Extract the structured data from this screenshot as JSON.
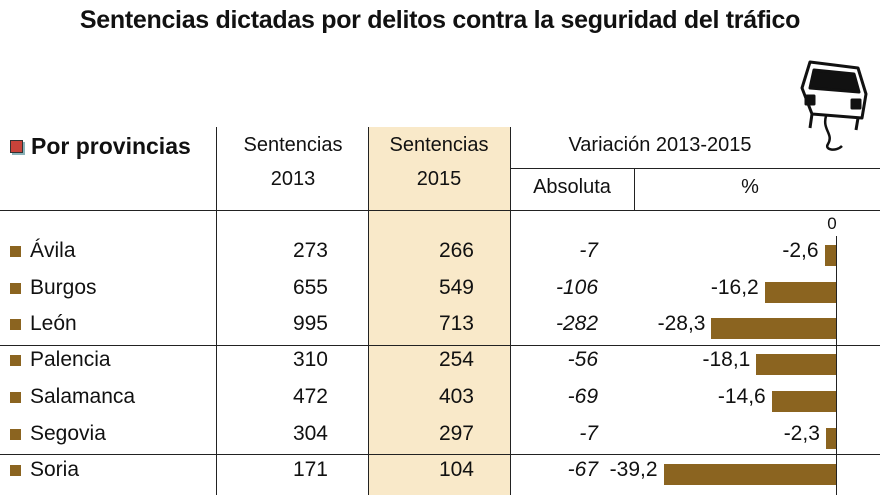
{
  "title": "Sentencias dictadas por delitos contra la seguridad del tráfico",
  "section_title": "Por provincias",
  "headers": {
    "col2013": [
      "Sentencias",
      "2013"
    ],
    "col2015": [
      "Sentencias",
      "2015"
    ],
    "variation": "Variación 2013-2015",
    "absolute": "Absoluta",
    "percent": "%"
  },
  "icons": [
    "car-icon"
  ],
  "colors": {
    "bar": "#8b6420",
    "highlight": "#f9e9c9",
    "marker": "#c8433a"
  },
  "chart_data": {
    "type": "table",
    "title": "Sentencias dictadas por delitos contra la seguridad del tráfico",
    "columns": [
      "Por provincias",
      "Sentencias 2013",
      "Sentencias 2015",
      "Absoluta",
      "%"
    ],
    "zero_label": "0",
    "rows": [
      {
        "province": "Ávila",
        "s2013": "273",
        "s2015": "266",
        "abs": "-7",
        "pct_label": "-2,6",
        "pct": -2.6
      },
      {
        "province": "Burgos",
        "s2013": "655",
        "s2015": "549",
        "abs": "-106",
        "pct_label": "-16,2",
        "pct": -16.2
      },
      {
        "province": "León",
        "s2013": "995",
        "s2015": "713",
        "abs": "-282",
        "pct_label": "-28,3",
        "pct": -28.3
      },
      {
        "province": "Palencia",
        "s2013": "310",
        "s2015": "254",
        "abs": "-56",
        "pct_label": "-18,1",
        "pct": -18.1
      },
      {
        "province": "Salamanca",
        "s2013": "472",
        "s2015": "403",
        "abs": "-69",
        "pct_label": "-14,6",
        "pct": -14.6
      },
      {
        "province": "Segovia",
        "s2013": "304",
        "s2015": "297",
        "abs": "-7",
        "pct_label": "-2,3",
        "pct": -2.3
      },
      {
        "province": "Soria",
        "s2013": "171",
        "s2015": "104",
        "abs": "-67",
        "pct_label": "-39,2",
        "pct": -39.2
      }
    ]
  }
}
